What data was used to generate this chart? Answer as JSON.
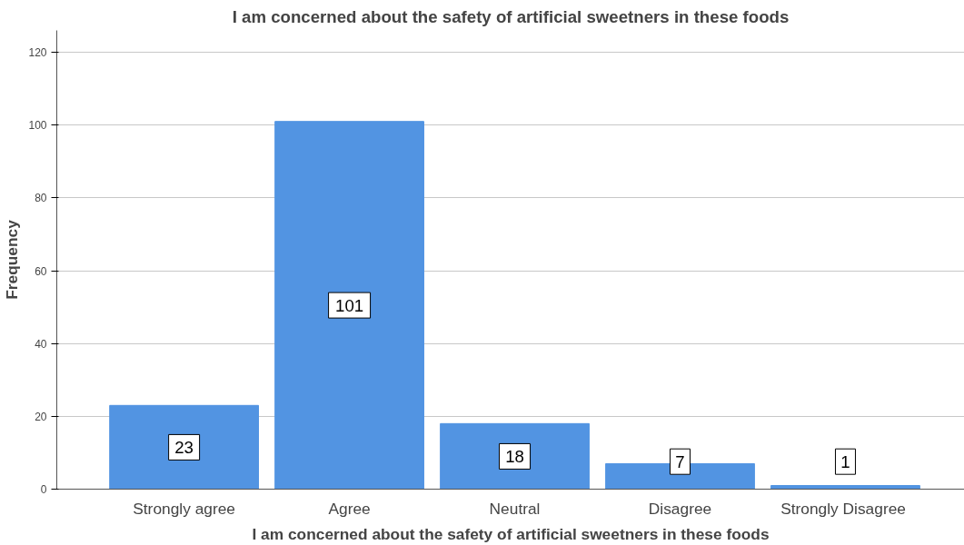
{
  "chart_data": {
    "type": "bar",
    "title": "I am concerned about the safety of artificial sweetners in these foods",
    "xlabel": "I am concerned about the safety of artificial sweetners in these foods",
    "ylabel": "Frequency",
    "categories": [
      "Strongly agree",
      "Agree",
      "Neutral",
      "Disagree",
      "Strongly  Disagree"
    ],
    "values": [
      23,
      101,
      18,
      7,
      1
    ],
    "color": "#5294e2",
    "ylim": [
      0,
      126
    ],
    "yticks": [
      0,
      20,
      40,
      60,
      80,
      100,
      120
    ],
    "grid": "y",
    "data_labels": true
  }
}
